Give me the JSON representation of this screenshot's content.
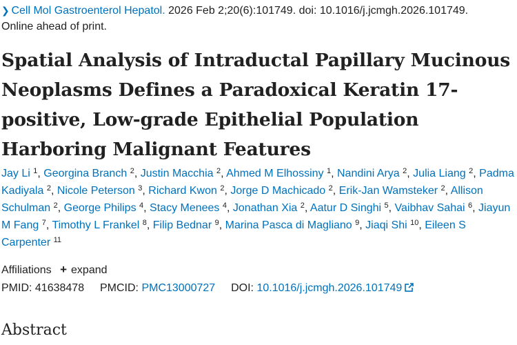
{
  "citation": {
    "journal": "Cell Mol Gastroenterol Hepatol.",
    "details": " 2026 Feb 2;20(6):101749. doi: 10.1016/j.jcmgh.2026.101749.",
    "status": "Online ahead of print."
  },
  "title": "Spatial Analysis of Intraductal Papillary Mucinous Neoplasms Defines a Paradoxical Keratin 17-positive, Low-grade Epithelial Population Harboring Malignant Features",
  "authors": [
    {
      "name": "Jay Li",
      "aff": "1"
    },
    {
      "name": "Georgina Branch",
      "aff": "2"
    },
    {
      "name": "Justin Macchia",
      "aff": "2"
    },
    {
      "name": "Ahmed M Elhossiny",
      "aff": "1"
    },
    {
      "name": "Nandini Arya",
      "aff": "2"
    },
    {
      "name": "Julia Liang",
      "aff": "2"
    },
    {
      "name": "Padma Kadiyala",
      "aff": "2"
    },
    {
      "name": "Nicole Peterson",
      "aff": "3"
    },
    {
      "name": "Richard Kwon",
      "aff": "2"
    },
    {
      "name": "Jorge D Machicado",
      "aff": "2"
    },
    {
      "name": "Erik-Jan Wamsteker",
      "aff": "2"
    },
    {
      "name": "Allison Schulman",
      "aff": "2"
    },
    {
      "name": "George Philips",
      "aff": "4"
    },
    {
      "name": "Stacy Menees",
      "aff": "4"
    },
    {
      "name": "Jonathan Xia",
      "aff": "2"
    },
    {
      "name": "Aatur D Singhi",
      "aff": "5"
    },
    {
      "name": "Vaibhav Sahai",
      "aff": "6"
    },
    {
      "name": "Jiayun M Fang",
      "aff": "7"
    },
    {
      "name": "Timothy L Frankel",
      "aff": "8"
    },
    {
      "name": "Filip Bednar",
      "aff": "9"
    },
    {
      "name": "Marina Pasca di Magliano",
      "aff": "9"
    },
    {
      "name": "Jiaqi Shi",
      "aff": "10"
    },
    {
      "name": "Eileen S Carpenter",
      "aff": "11"
    }
  ],
  "affiliations": {
    "label": "Affiliations",
    "expand_label": "expand"
  },
  "identifiers": {
    "pmid_label": "PMID:",
    "pmid": "41638478",
    "pmcid_label": "PMCID:",
    "pmcid": "PMC13000727",
    "doi_label": "DOI:",
    "doi": "10.1016/j.jcmgh.2026.101749"
  },
  "abstract_heading": "Abstract",
  "colors": {
    "link": "#0071bc",
    "text": "#212121"
  },
  "icons": {
    "citation_expander": "chevron-right-icon",
    "affiliations_expand": "plus-icon",
    "doi_external": "external-link-icon"
  }
}
